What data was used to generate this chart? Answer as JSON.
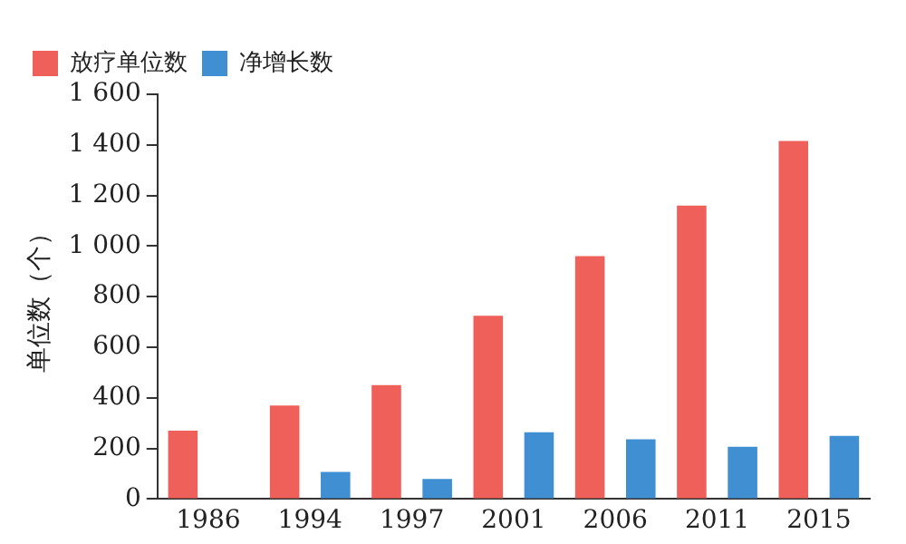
{
  "chart_data": {
    "type": "bar",
    "ylabel": "单位数（个）",
    "categories": [
      "1986",
      "1994",
      "1997",
      "2001",
      "2006",
      "2011",
      "2015"
    ],
    "series": [
      {
        "name": "放疗单位数",
        "color": "#f0605a",
        "values": [
          270,
          370,
          450,
          725,
          960,
          1160,
          1415
        ]
      },
      {
        "name": "净增长数",
        "color": "#3f8fd2",
        "values": [
          null,
          107,
          79,
          264,
          236,
          207,
          250
        ]
      }
    ],
    "ylim": [
      0,
      1600
    ],
    "yticks": [
      0,
      200,
      400,
      600,
      800,
      1000,
      1200,
      1400,
      1600
    ],
    "grid": false,
    "legend": "top left"
  }
}
